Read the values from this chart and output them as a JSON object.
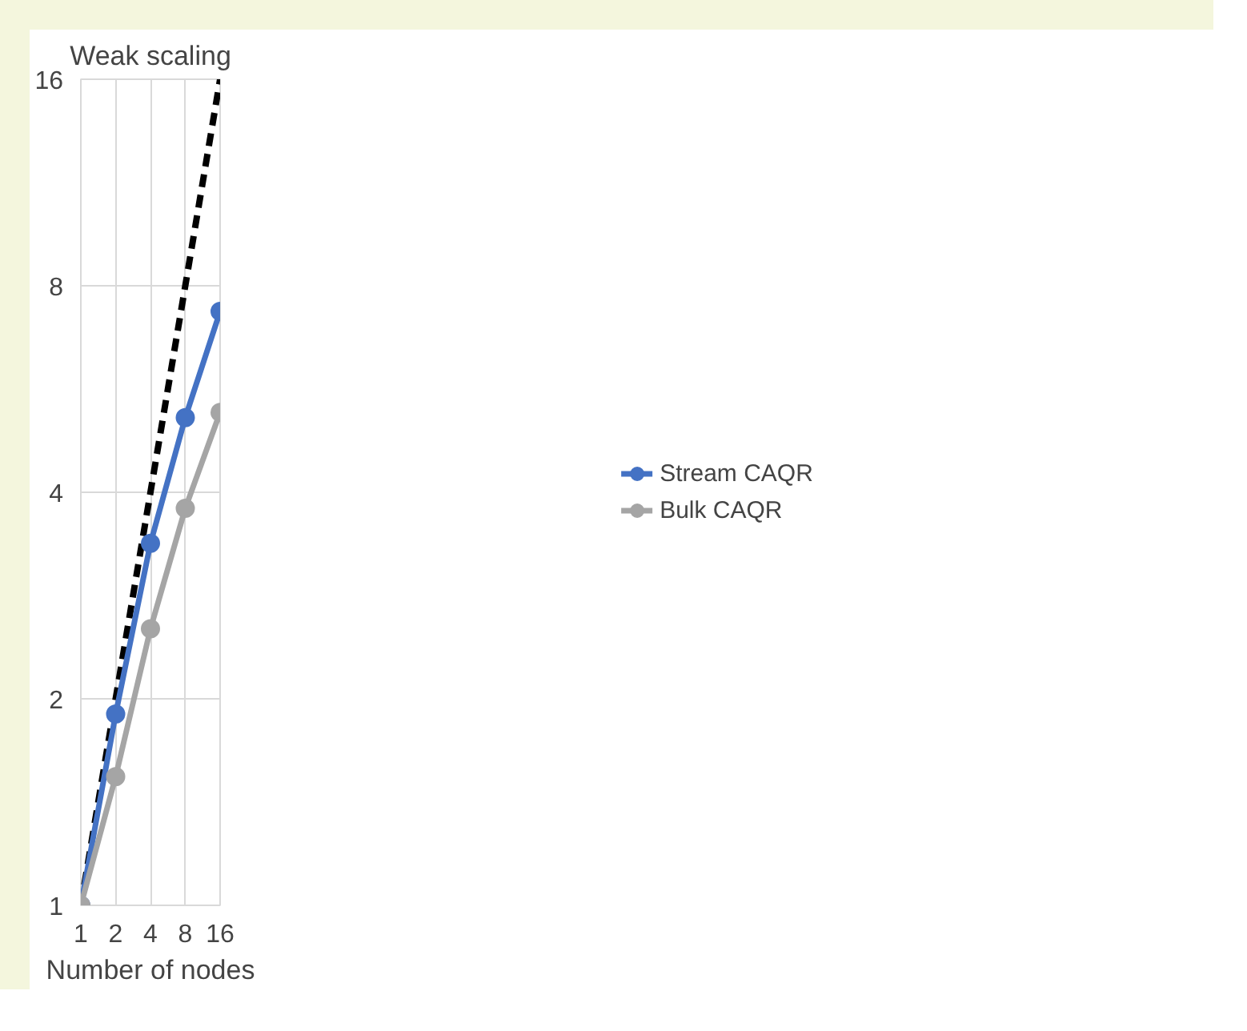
{
  "chart_data": {
    "type": "line",
    "title": "Weak scaling",
    "xlabel": "Number of nodes",
    "log": "xy",
    "x": [
      1,
      2,
      4,
      8,
      16
    ],
    "xlim": [
      1,
      16
    ],
    "ylim": [
      1,
      16
    ],
    "xticks": [
      1,
      2,
      4,
      8,
      16
    ],
    "yticks": [
      1,
      2,
      4,
      8,
      16
    ],
    "grid": true,
    "legend": "right",
    "marker": "circle",
    "series": [
      {
        "color": "#000000",
        "values": [
          1,
          2,
          4,
          8,
          16
        ],
        "line_style": "dashed",
        "marker": "none"
      },
      {
        "name": "Stream CAQR",
        "color": "#4472c4",
        "values": [
          1,
          1.9,
          3.37,
          5.14,
          7.34
        ]
      },
      {
        "name": "Bulk CAQR",
        "color": "#a5a5a5",
        "values": [
          1,
          1.54,
          2.53,
          3.79,
          5.23
        ]
      }
    ]
  }
}
